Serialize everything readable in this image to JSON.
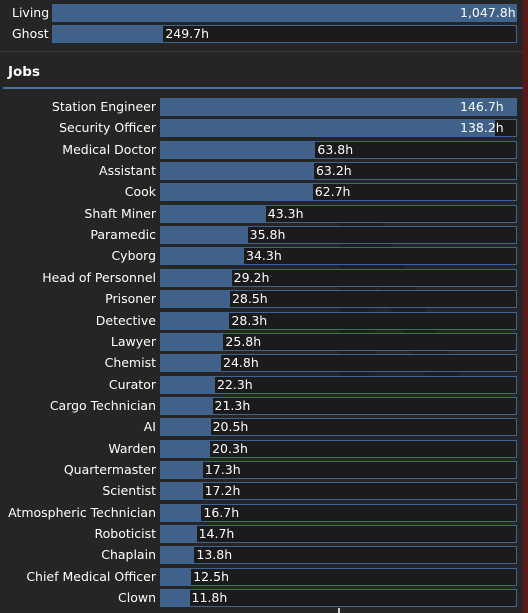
{
  "top": [
    {
      "label": "Living",
      "value": "1,047.8h",
      "hours": 1047.8
    },
    {
      "label": "Ghost",
      "value": "249.7h",
      "hours": 249.7
    }
  ],
  "jobs_title": "Jobs",
  "jobs": [
    {
      "label": "Station Engineer",
      "value": "146.7h",
      "hours": 146.7
    },
    {
      "label": "Security Officer",
      "value": "138.2h",
      "hours": 138.2
    },
    {
      "label": "Medical Doctor",
      "value": "63.8h",
      "hours": 63.8
    },
    {
      "label": "Assistant",
      "value": "63.2h",
      "hours": 63.2
    },
    {
      "label": "Cook",
      "value": "62.7h",
      "hours": 62.7
    },
    {
      "label": "Shaft Miner",
      "value": "43.3h",
      "hours": 43.3
    },
    {
      "label": "Paramedic",
      "value": "35.8h",
      "hours": 35.8
    },
    {
      "label": "Cyborg",
      "value": "34.3h",
      "hours": 34.3
    },
    {
      "label": "Head of Personnel",
      "value": "29.2h",
      "hours": 29.2
    },
    {
      "label": "Prisoner",
      "value": "28.5h",
      "hours": 28.5
    },
    {
      "label": "Detective",
      "value": "28.3h",
      "hours": 28.3
    },
    {
      "label": "Lawyer",
      "value": "25.8h",
      "hours": 25.8
    },
    {
      "label": "Chemist",
      "value": "24.8h",
      "hours": 24.8
    },
    {
      "label": "Curator",
      "value": "22.3h",
      "hours": 22.3
    },
    {
      "label": "Cargo Technician",
      "value": "21.3h",
      "hours": 21.3
    },
    {
      "label": "AI",
      "value": "20.5h",
      "hours": 20.5
    },
    {
      "label": "Warden",
      "value": "20.3h",
      "hours": 20.3
    },
    {
      "label": "Quartermaster",
      "value": "17.3h",
      "hours": 17.3
    },
    {
      "label": "Scientist",
      "value": "17.2h",
      "hours": 17.2
    },
    {
      "label": "Atmospheric Technician",
      "value": "16.7h",
      "hours": 16.7
    },
    {
      "label": "Roboticist",
      "value": "14.7h",
      "hours": 14.7
    },
    {
      "label": "Chaplain",
      "value": "13.8h",
      "hours": 13.8
    },
    {
      "label": "Chief Medical Officer",
      "value": "12.5h",
      "hours": 12.5
    },
    {
      "label": "Clown",
      "value": "11.8h",
      "hours": 11.8
    }
  ],
  "colors": {
    "background": "#252525",
    "bar_fill": "#40628a",
    "bar_border": "#3d6591",
    "track": "#1b1b1b",
    "accent_line": "#4972a1"
  }
}
